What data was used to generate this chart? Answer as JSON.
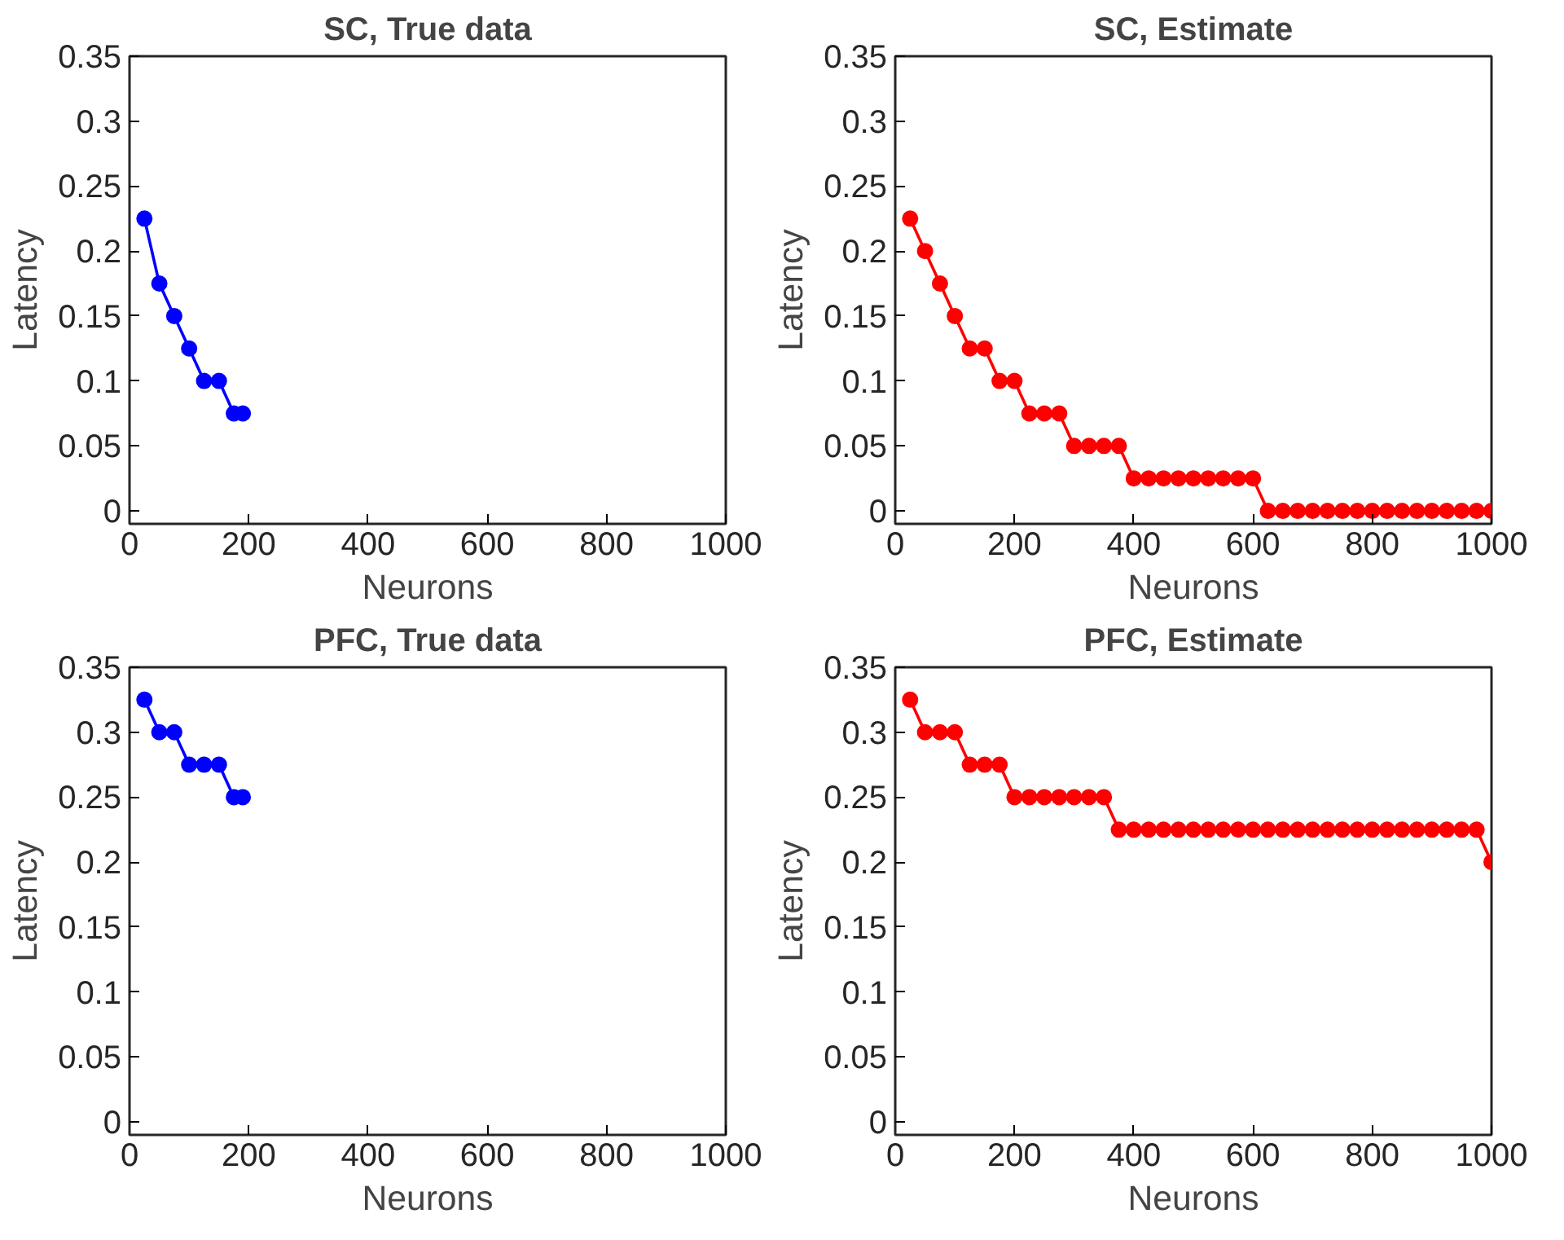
{
  "chart_data": [
    {
      "type": "line",
      "title": "SC, True data",
      "xlabel": "Neurons",
      "ylabel": "Latency",
      "marker": "circle",
      "line_style": "solid",
      "grid": false,
      "xlim": [
        0,
        1000
      ],
      "xticks": [
        0,
        200,
        400,
        600,
        800,
        1000
      ],
      "ylim": [
        -0.01,
        0.35
      ],
      "yticks": [
        0,
        0.05,
        0.1,
        0.15,
        0.2,
        0.25,
        0.3,
        0.35
      ],
      "x": [
        25,
        50,
        75,
        100,
        125,
        150,
        175,
        190
      ],
      "series": [
        {
          "color": "#0000ff",
          "values": [
            0.225,
            0.175,
            0.15,
            0.125,
            0.1,
            0.1,
            0.075,
            0.075
          ]
        }
      ]
    },
    {
      "type": "line",
      "title": "SC, Estimate",
      "xlabel": "Neurons",
      "ylabel": "Latency",
      "marker": "circle",
      "line_style": "solid",
      "grid": false,
      "xlim": [
        0,
        1000
      ],
      "xticks": [
        0,
        200,
        400,
        600,
        800,
        1000
      ],
      "ylim": [
        -0.01,
        0.35
      ],
      "yticks": [
        0,
        0.05,
        0.1,
        0.15,
        0.2,
        0.25,
        0.3,
        0.35
      ],
      "x": [
        25,
        50,
        75,
        100,
        125,
        150,
        175,
        200,
        225,
        250,
        275,
        300,
        325,
        350,
        375,
        400,
        425,
        450,
        475,
        500,
        525,
        550,
        575,
        600,
        625,
        650,
        675,
        700,
        725,
        750,
        775,
        800,
        825,
        850,
        875,
        900,
        925,
        950,
        975,
        1000
      ],
      "series": [
        {
          "color": "#ff0000",
          "values": [
            0.225,
            0.2,
            0.175,
            0.15,
            0.125,
            0.125,
            0.1,
            0.1,
            0.075,
            0.075,
            0.075,
            0.05,
            0.05,
            0.05,
            0.05,
            0.025,
            0.025,
            0.025,
            0.025,
            0.025,
            0.025,
            0.025,
            0.025,
            0.025,
            0,
            0,
            0,
            0,
            0,
            0,
            0,
            0,
            0,
            0,
            0,
            0,
            0,
            0,
            0,
            0
          ]
        }
      ]
    },
    {
      "type": "line",
      "title": "PFC, True data",
      "xlabel": "Neurons",
      "ylabel": "Latency",
      "marker": "circle",
      "line_style": "solid",
      "grid": false,
      "xlim": [
        0,
        1000
      ],
      "xticks": [
        0,
        200,
        400,
        600,
        800,
        1000
      ],
      "ylim": [
        -0.01,
        0.35
      ],
      "yticks": [
        0,
        0.05,
        0.1,
        0.15,
        0.2,
        0.25,
        0.3,
        0.35
      ],
      "x": [
        25,
        50,
        75,
        100,
        125,
        150,
        175,
        190
      ],
      "series": [
        {
          "color": "#0000ff",
          "values": [
            0.325,
            0.3,
            0.3,
            0.275,
            0.275,
            0.275,
            0.25,
            0.25
          ]
        }
      ]
    },
    {
      "type": "line",
      "title": "PFC, Estimate",
      "xlabel": "Neurons",
      "ylabel": "Latency",
      "marker": "circle",
      "line_style": "solid",
      "grid": false,
      "xlim": [
        0,
        1000
      ],
      "xticks": [
        0,
        200,
        400,
        600,
        800,
        1000
      ],
      "ylim": [
        -0.01,
        0.35
      ],
      "yticks": [
        0,
        0.05,
        0.1,
        0.15,
        0.2,
        0.25,
        0.3,
        0.35
      ],
      "x": [
        25,
        50,
        75,
        100,
        125,
        150,
        175,
        200,
        225,
        250,
        275,
        300,
        325,
        350,
        375,
        400,
        425,
        450,
        475,
        500,
        525,
        550,
        575,
        600,
        625,
        650,
        675,
        700,
        725,
        750,
        775,
        800,
        825,
        850,
        875,
        900,
        925,
        950,
        975,
        1000
      ],
      "series": [
        {
          "color": "#ff0000",
          "values": [
            0.325,
            0.3,
            0.3,
            0.3,
            0.275,
            0.275,
            0.275,
            0.25,
            0.25,
            0.25,
            0.25,
            0.25,
            0.25,
            0.25,
            0.225,
            0.225,
            0.225,
            0.225,
            0.225,
            0.225,
            0.225,
            0.225,
            0.225,
            0.225,
            0.225,
            0.225,
            0.225,
            0.225,
            0.225,
            0.225,
            0.225,
            0.225,
            0.225,
            0.225,
            0.225,
            0.225,
            0.225,
            0.225,
            0.225,
            0.2
          ]
        }
      ]
    }
  ]
}
